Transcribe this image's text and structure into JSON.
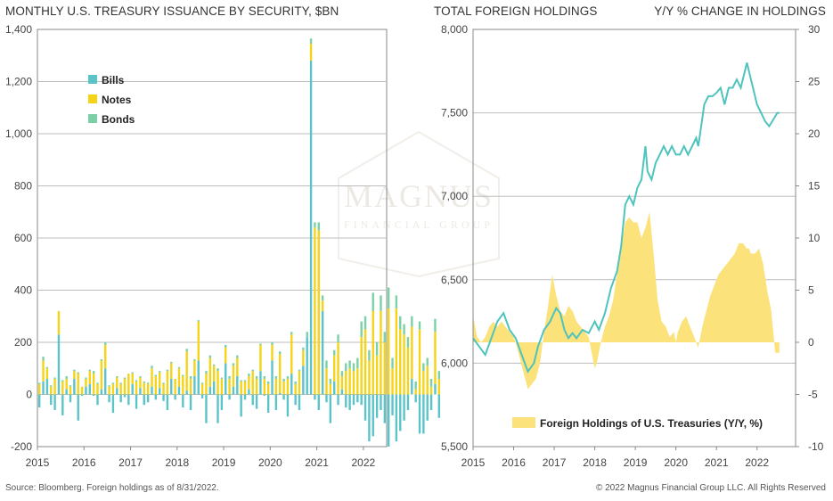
{
  "left_chart_title": "MONTHLY U.S. TREASURY ISSUANCE BY SECURITY, $BN",
  "right_chart_title_left": "TOTAL FOREIGN HOLDINGS",
  "right_chart_title_right": "Y/Y % CHANGE IN HOLDINGS",
  "footer_source": "Source: Bloomberg. Foreign holdings as of 8/31/2022.",
  "footer_copyright": "© 2022 Magnus Financial Group LLC. All Rights Reserved",
  "watermark": {
    "line1": "MAGNUS",
    "line2": "FINANCIAL GROUP"
  },
  "colors": {
    "bills": "#5bc4c9",
    "notes": "#f5d316",
    "bonds": "#7bd1a5",
    "fill_yoy": "#fbe27a",
    "line_holdings": "#4fc3bd",
    "grid": "#bdbdbd",
    "axis": "#888888"
  },
  "chart_data": [
    {
      "type": "bar",
      "stacked": true,
      "title": "MONTHLY U.S. TREASURY ISSUANCE BY SECURITY, $BN",
      "ylim": [
        -200,
        1400
      ],
      "yticks": [
        "-200",
        "0",
        "200",
        "400",
        "600",
        "800",
        "1,000",
        "1,200",
        "1,400"
      ],
      "ytick_values": [
        -200,
        0,
        200,
        400,
        600,
        800,
        1000,
        1200,
        1400
      ],
      "xlim": [
        2015.0,
        2022.5
      ],
      "xticks": [
        "2015",
        "2016",
        "2017",
        "2018",
        "2019",
        "2020",
        "2021",
        "2022"
      ],
      "xtick_values": [
        2015,
        2016,
        2017,
        2018,
        2019,
        2020,
        2021,
        2022
      ],
      "legend": [
        "Bills",
        "Notes",
        "Bonds"
      ],
      "legend_position": "top-left",
      "start_month": "2015-01",
      "series": [
        {
          "name": "Bills",
          "values": [
            -50,
            50,
            60,
            -40,
            -60,
            230,
            -80,
            20,
            -30,
            60,
            -100,
            -5,
            30,
            40,
            -5,
            -40,
            20,
            100,
            -30,
            -70,
            25,
            -30,
            -10,
            -40,
            40,
            -55,
            25,
            -40,
            -30,
            30,
            -20,
            25,
            -25,
            -60,
            60,
            -20,
            30,
            -50,
            15,
            -60,
            70,
            130,
            -15,
            -110,
            30,
            50,
            -110,
            -60,
            120,
            -20,
            30,
            70,
            -85,
            -20,
            20,
            -40,
            -55,
            90,
            -5,
            -70,
            130,
            -60,
            5,
            -20,
            -85,
            80,
            -40,
            -60,
            110,
            220,
            1280,
            -20,
            -60,
            320,
            -30,
            -110,
            50,
            -40,
            20,
            -50,
            -60,
            -40,
            -30,
            -40,
            -100,
            -180,
            -160,
            -90,
            -60,
            -110,
            -200,
            -80,
            -180,
            -140,
            -100,
            -60,
            60,
            -30,
            -150,
            -150,
            -100,
            -60,
            40,
            -90
          ]
        },
        {
          "name": "Notes",
          "values": [
            40,
            80,
            40,
            30,
            60,
            90,
            50,
            40,
            30,
            30,
            80,
            30,
            30,
            50,
            80,
            40,
            110,
            90,
            30,
            40,
            40,
            40,
            60,
            80,
            40,
            50,
            40,
            45,
            40,
            70,
            70,
            60,
            40,
            90,
            60,
            60,
            70,
            70,
            150,
            60,
            60,
            150,
            40,
            80,
            110,
            60,
            90,
            60,
            60,
            60,
            80,
            70,
            50,
            50,
            50,
            90,
            60,
            100,
            60,
            40,
            60,
            60,
            150,
            50,
            60,
            150,
            40,
            90,
            60,
            0,
            65,
            640,
            630,
            40,
            100,
            40,
            100,
            200,
            50,
            90,
            100,
            90,
            100,
            220,
            250,
            130,
            320,
            150,
            320,
            200,
            330,
            100,
            330,
            250,
            230,
            180,
            200,
            20,
            250,
            90,
            110,
            30,
            200,
            60
          ]
        },
        {
          "name": "Bonds",
          "values": [
            5,
            15,
            5,
            5,
            5,
            0,
            5,
            10,
            5,
            5,
            5,
            0,
            5,
            5,
            10,
            5,
            5,
            10,
            5,
            5,
            5,
            5,
            5,
            0,
            5,
            5,
            5,
            5,
            5,
            10,
            5,
            5,
            5,
            5,
            5,
            0,
            5,
            5,
            10,
            10,
            5,
            5,
            5,
            10,
            10,
            5,
            10,
            5,
            10,
            10,
            10,
            10,
            5,
            5,
            10,
            5,
            10,
            5,
            10,
            10,
            10,
            10,
            10,
            10,
            10,
            10,
            10,
            5,
            10,
            20,
            20,
            20,
            30,
            20,
            30,
            20,
            20,
            30,
            20,
            30,
            30,
            30,
            40,
            60,
            50,
            40,
            70,
            50,
            60,
            40,
            80,
            40,
            50,
            50,
            40,
            40,
            40,
            30,
            30,
            30,
            30,
            30,
            50,
            30
          ]
        }
      ]
    },
    {
      "type": "line",
      "title": "TOTAL FOREIGN HOLDINGS",
      "secondary_title": "Y/Y % CHANGE IN HOLDINGS",
      "ylim": [
        5500,
        8000
      ],
      "yticks": [
        "5,500",
        "6,000",
        "6,500",
        "7,000",
        "7,500",
        "8,000"
      ],
      "ytick_values": [
        5500,
        6000,
        6500,
        7000,
        7500,
        8000
      ],
      "y2lim": [
        -10,
        30
      ],
      "y2ticks": [
        "-10",
        "-5",
        "0",
        "5",
        "10",
        "15",
        "20",
        "25",
        "30"
      ],
      "y2tick_values": [
        -10,
        -5,
        0,
        5,
        10,
        15,
        20,
        25,
        30
      ],
      "xlim": [
        2015.0,
        2022.95
      ],
      "xticks": [
        "2015",
        "2016",
        "2017",
        "2018",
        "2019",
        "2020",
        "2021",
        "2022"
      ],
      "xtick_values": [
        2015,
        2016,
        2017,
        2018,
        2019,
        2020,
        2021,
        2022
      ],
      "legend": [
        "Foreign Holdings of U.S. Treasuries (Y/Y, %)"
      ],
      "legend_position": "bottom-right",
      "series": [
        {
          "name": "Total Foreign Holdings",
          "axis": "left",
          "x": [
            2015.0,
            2015.15,
            2015.3,
            2015.45,
            2015.6,
            2015.75,
            2015.9,
            2016.05,
            2016.2,
            2016.35,
            2016.5,
            2016.6,
            2016.75,
            2016.9,
            2017.05,
            2017.15,
            2017.25,
            2017.35,
            2017.45,
            2017.55,
            2017.7,
            2017.85,
            2018.0,
            2018.1,
            2018.25,
            2018.4,
            2018.55,
            2018.65,
            2018.75,
            2018.85,
            2018.95,
            2019.05,
            2019.15,
            2019.25,
            2019.3,
            2019.4,
            2019.5,
            2019.6,
            2019.7,
            2019.8,
            2019.9,
            2020.0,
            2020.1,
            2020.2,
            2020.3,
            2020.4,
            2020.5,
            2020.55,
            2020.6,
            2020.7,
            2020.8,
            2020.9,
            2021.0,
            2021.1,
            2021.2,
            2021.3,
            2021.4,
            2021.5,
            2021.6,
            2021.7,
            2021.75,
            2021.85,
            2021.9,
            2022.0,
            2022.1,
            2022.2,
            2022.3,
            2022.4,
            2022.5,
            2022.55
          ],
          "values": [
            6150,
            6100,
            6050,
            6150,
            6250,
            6300,
            6200,
            6150,
            6050,
            5950,
            6000,
            6100,
            6200,
            6250,
            6330,
            6300,
            6200,
            6150,
            6180,
            6150,
            6200,
            6180,
            6250,
            6200,
            6300,
            6450,
            6550,
            6700,
            6950,
            7000,
            6950,
            7050,
            7100,
            7300,
            7150,
            7100,
            7200,
            7250,
            7300,
            7250,
            7300,
            7250,
            7250,
            7300,
            7250,
            7300,
            7350,
            7300,
            7380,
            7550,
            7600,
            7600,
            7620,
            7650,
            7550,
            7650,
            7650,
            7700,
            7650,
            7750,
            7800,
            7700,
            7650,
            7550,
            7500,
            7450,
            7420,
            7460,
            7500,
            7500
          ]
        },
        {
          "name": "Foreign Holdings of U.S. Treasuries (Y/Y, %)",
          "axis": "right",
          "type": "area",
          "x": [
            2015.0,
            2015.1,
            2015.2,
            2015.3,
            2015.4,
            2015.5,
            2015.6,
            2015.7,
            2015.8,
            2015.9,
            2016.0,
            2016.05,
            2016.15,
            2016.25,
            2016.35,
            2016.45,
            2016.55,
            2016.65,
            2016.75,
            2016.85,
            2016.95,
            2017.05,
            2017.15,
            2017.25,
            2017.35,
            2017.45,
            2017.55,
            2017.65,
            2017.75,
            2017.85,
            2017.95,
            2018.0,
            2018.05,
            2018.15,
            2018.25,
            2018.35,
            2018.45,
            2018.55,
            2018.65,
            2018.75,
            2018.85,
            2018.95,
            2019.05,
            2019.15,
            2019.25,
            2019.35,
            2019.45,
            2019.55,
            2019.65,
            2019.75,
            2019.85,
            2019.95,
            2020.0,
            2020.05,
            2020.15,
            2020.25,
            2020.35,
            2020.45,
            2020.55,
            2020.65,
            2020.75,
            2020.85,
            2020.95,
            2021.05,
            2021.15,
            2021.25,
            2021.35,
            2021.45,
            2021.55,
            2021.65,
            2021.75,
            2021.8,
            2021.85,
            2021.95,
            2022.05,
            2022.15,
            2022.25,
            2022.35,
            2022.45,
            2022.55
          ],
          "values": [
            2.5,
            0.5,
            0.0,
            0.5,
            1.5,
            2.0,
            1.5,
            2.0,
            1.5,
            1.0,
            0.5,
            0.0,
            -1.5,
            -3.0,
            -4.5,
            -4.0,
            -3.5,
            -2.0,
            1.0,
            3.5,
            6.5,
            4.5,
            3.0,
            2.5,
            3.5,
            3.0,
            2.0,
            1.5,
            1.0,
            0.5,
            -1.5,
            -2.5,
            -2.0,
            0.0,
            1.5,
            2.5,
            4.0,
            6.5,
            9.0,
            11.5,
            12.0,
            11.5,
            11.5,
            10.0,
            11.0,
            12.5,
            8.5,
            4.0,
            2.0,
            1.5,
            0.5,
            1.0,
            0.0,
            1.0,
            2.0,
            2.5,
            1.5,
            0.5,
            -0.5,
            1.5,
            3.0,
            4.5,
            5.5,
            6.5,
            7.0,
            7.5,
            8.0,
            8.5,
            9.5,
            9.5,
            9.0,
            9.0,
            8.5,
            8.5,
            9.0,
            7.5,
            5.0,
            3.0,
            -1.0,
            -1.0
          ]
        }
      ]
    }
  ]
}
